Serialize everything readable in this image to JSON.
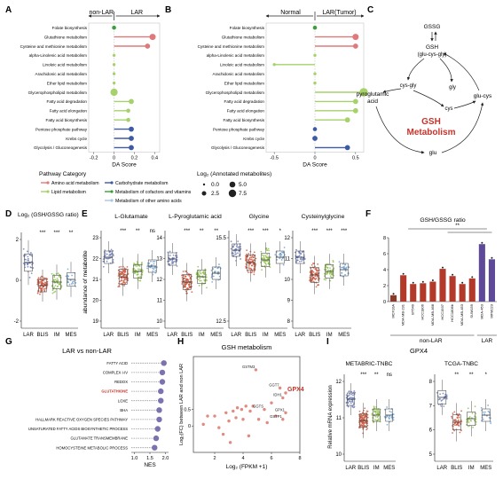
{
  "panels": {
    "A": "A",
    "B": "B",
    "C": "C",
    "D": "D",
    "E": "E",
    "F": "F",
    "G": "G",
    "H": "H",
    "I": "I"
  },
  "chart_data": [
    {
      "id": "A",
      "type": "lollipop",
      "left_label": "non-LAR",
      "right_label": "LAR",
      "xlabel": "DA Score",
      "ticks": [
        -0.2,
        0.0,
        0.2,
        0.4
      ],
      "xlim": [
        -0.25,
        0.45
      ],
      "pathways": [
        "Folate biosynthesis",
        "Glutathione metabolism",
        "Cysteine and methionine metabolism",
        "alpha-Linolenic acid metabolism",
        "Linoleic acid metabolism",
        "Arachidonic acid metabolism",
        "Ether lipid metabolism",
        "Glycerophospholipid metabolism",
        "Fatty acid degradation",
        "Fatty acid elongation",
        "Fatty acid biosynthesis",
        "Pentose phosphate pathway",
        "Krebs cycle",
        "Glycolysis / Gluconeogenesis"
      ],
      "values": [
        0.0,
        0.38,
        0.33,
        0.0,
        0.0,
        0.0,
        0.0,
        0.0,
        0.17,
        0.14,
        0.14,
        0.17,
        0.17,
        0.17
      ],
      "categories": [
        "cofactor",
        "amino",
        "amino",
        "lipid",
        "lipid",
        "lipid",
        "lipid",
        "lipid",
        "lipid",
        "lipid",
        "lipid",
        "carb",
        "carb",
        "carb"
      ],
      "sizes": [
        2,
        4,
        3,
        1,
        1,
        1,
        1,
        5,
        3,
        2,
        2,
        3,
        3,
        3
      ]
    },
    {
      "id": "B",
      "type": "lollipop",
      "left_label": "Normal",
      "right_label": "LAR(Tumor)",
      "xlabel": "DA Score",
      "ticks": [
        -0.5,
        0.0,
        0.5
      ],
      "xlim": [
        -0.6,
        0.6
      ],
      "pathways": [
        "Folate biosynthesis",
        "Glutathione metabolism",
        "Cysteine and methionine metabolism",
        "alpha-Linolenic acid metabolism",
        "Linoleic acid metabolism",
        "Arachidonic acid metabolism",
        "Ether lipid metabolism",
        "Glycerophospholipid metabolism",
        "Fatty acid degradation",
        "Fatty acid elongation",
        "Fatty acid biosynthesis",
        "Pentose phosphate pathway",
        "Krebs cycle",
        "Glycolysis / Gluconeogenesis"
      ],
      "values": [
        0.0,
        0.5,
        0.5,
        0.0,
        -0.5,
        0.0,
        0.0,
        0.6,
        0.5,
        0.5,
        0.4,
        0.0,
        0.0,
        0.4
      ],
      "categories": [
        "cofactor",
        "amino",
        "amino",
        "lipid",
        "lipid",
        "lipid",
        "lipid",
        "lipid",
        "lipid",
        "lipid",
        "lipid",
        "carb",
        "carb",
        "carb"
      ],
      "sizes": [
        2,
        4,
        3,
        1,
        1,
        1,
        1,
        6,
        3,
        3,
        3,
        2,
        3,
        3
      ]
    }
  ],
  "legend_ab": {
    "pathway_title": "Pathway Category",
    "items": [
      {
        "key": "amino",
        "label": "Amino acid metabolism",
        "color": "#e07a7a"
      },
      {
        "key": "lipid",
        "label": "Lipid metabolism",
        "color": "#a6d16b"
      },
      {
        "key": "carb",
        "label": "Carbohydrate metabolism",
        "color": "#3e5aa6"
      },
      {
        "key": "cofactor",
        "label": "Metabolism of cofactors and vitamins",
        "color": "#3aa13a"
      },
      {
        "key": "other",
        "label": "Metabolism of other amino acids",
        "color": "#a8c8e8"
      }
    ],
    "size_title": "Log₂ (Annotated metabolites)",
    "size_items": [
      "0.0",
      "2.5",
      "5.0",
      "7.5"
    ]
  },
  "panelC": {
    "gssg": "GSSG",
    "gsh": "GSH",
    "gsh2": "(glu-cys-gly)",
    "cysgly": "cys-gly",
    "gly": "gly",
    "pyro": "pyroglutamic",
    "pyro2": "acid",
    "cys": "cys",
    "glucys": "glu-cys",
    "glu": "glu",
    "center1": "GSH",
    "center2": "Metabolism"
  },
  "panelD": {
    "ylabel": "Log₂ (GSH/GSSG ratio)",
    "yticks": [
      "2",
      "0",
      "-2"
    ],
    "groups": [
      "LAR",
      "BLIS",
      "IM",
      "MES"
    ],
    "sig": [
      "",
      "***",
      "***",
      "**"
    ]
  },
  "panelE": {
    "ylabel": "abundance of metabolite",
    "groups": [
      "LAR",
      "BLIS",
      "IM",
      "MES"
    ],
    "charts": [
      {
        "title": "L-Glutamate",
        "yticks": [
          "23",
          "22",
          "21",
          "20",
          "19"
        ],
        "sig": [
          "",
          "***",
          "**",
          "ns"
        ]
      },
      {
        "title": "L-Pyroglutamic acid",
        "yticks": [
          "14",
          "13",
          "12",
          "11",
          "10"
        ],
        "sig": [
          "",
          "***",
          "**",
          "**"
        ]
      },
      {
        "title": "Glycine",
        "yticks": [
          "15.5",
          "12.5"
        ],
        "sig": [
          "",
          "***",
          "***",
          "*"
        ]
      },
      {
        "title": "Cysteinylglycine",
        "yticks": [
          "12",
          "11",
          "10",
          "9",
          "8"
        ],
        "sig": [
          "",
          "***",
          "***",
          "***"
        ]
      }
    ]
  },
  "panelF": {
    "title": "GSH/GSSG ratio",
    "sig": "**",
    "yticks": [
      "8",
      "6",
      "4",
      "2",
      "0"
    ],
    "labels": [
      "MCF10A",
      "MDA-MB-231",
      "BT549",
      "HCC1806",
      "MDA-MB-468",
      "HCC1937",
      "HCC1806b",
      "MDA-MB-453",
      "SUM159",
      "MDA-453",
      "MFM223"
    ],
    "values": [
      0.8,
      3.3,
      2.2,
      2.3,
      2.5,
      4.1,
      3.2,
      2.2,
      2.9,
      7.2,
      5.3
    ],
    "colors": [
      "#8b3a2a",
      "#b33a2a",
      "#b33a2a",
      "#b33a2a",
      "#b33a2a",
      "#b33a2a",
      "#b33a2a",
      "#b33a2a",
      "#b33a2a",
      "#5f4a9a",
      "#5f4a9a"
    ],
    "group_nonlar": "non-LAR",
    "group_lar": "LAR"
  },
  "panelG": {
    "title": "LAR vs non-LAR",
    "xlabel": "NES",
    "xticks": [
      "1.0",
      "1.5",
      "2.0"
    ],
    "items": [
      "FATTY ACID",
      "COMPLEX I-IV",
      "REDOX",
      "GLUTATHIONE",
      "LOXE",
      "BHA",
      "HALLMARK REACTIVE OXYGEN SPECIES PATHWAY",
      "UNSATURATED FATTY ACIDS BIOSYNTHETIC PROCESS",
      "GLUTAMATE TRANSMEMBRANE",
      "HOMOCYSTEINE METABOLIC PROCESS"
    ],
    "nes": [
      1.95,
      1.9,
      1.9,
      1.85,
      1.85,
      1.8,
      1.8,
      1.75,
      1.7,
      1.65
    ],
    "highlight": 3
  },
  "panelH": {
    "title": "GSH metabolism",
    "xlabel": "Log₂ (FPKM +1)",
    "ylabel": "Log₂(FC) between LAR and non LAR",
    "xticks": [
      "2",
      "4",
      "6",
      "8"
    ],
    "yticks": [
      "0.5",
      "0"
    ],
    "labels": [
      {
        "text": "GSTM3",
        "x": 4.9,
        "y": 1.7
      },
      {
        "text": "GGT7",
        "x": 6.6,
        "y": 1.15
      },
      {
        "text": "GPX4",
        "x": 7.0,
        "y": 1.0
      },
      {
        "text": "IDH1",
        "x": 6.8,
        "y": 0.85
      },
      {
        "text": "GGTS",
        "x": 5.5,
        "y": 0.5
      },
      {
        "text": "GPX1",
        "x": 7.0,
        "y": 0.4
      },
      {
        "text": "GSTP1",
        "x": 6.8,
        "y": 0.2
      }
    ],
    "points": [
      [
        1.2,
        0.05
      ],
      [
        1.5,
        0.3
      ],
      [
        2.0,
        0.3
      ],
      [
        2.3,
        -0.05
      ],
      [
        2.6,
        -0.25
      ],
      [
        2.8,
        0.4
      ],
      [
        3.0,
        0.15
      ],
      [
        3.3,
        0.45
      ],
      [
        3.5,
        0.25
      ],
      [
        3.6,
        0.55
      ],
      [
        3.9,
        0.5
      ],
      [
        4.0,
        0.2
      ],
      [
        4.2,
        0.6
      ],
      [
        4.5,
        0.45
      ],
      [
        4.7,
        0.6
      ],
      [
        4.9,
        1.7
      ],
      [
        5.1,
        0.2
      ],
      [
        5.5,
        0.5
      ],
      [
        5.7,
        0.1
      ],
      [
        6.0,
        0.7
      ],
      [
        6.3,
        0.3
      ],
      [
        6.6,
        1.15
      ],
      [
        6.8,
        0.85
      ],
      [
        7.0,
        0.4
      ],
      [
        7.0,
        1.0
      ],
      [
        6.8,
        0.2
      ],
      [
        3.1,
        -0.5
      ],
      [
        4.4,
        -0.3
      ]
    ]
  },
  "panelI": {
    "title": "GPX4",
    "ylabel": "Relative mRNA expression",
    "left": {
      "title": "METABRIC-TNBC",
      "yticks": [
        "12",
        "11",
        "10"
      ],
      "groups": [
        "LAR",
        "BLIS",
        "IM",
        "MES"
      ],
      "sig": [
        "",
        "***",
        "**",
        "ns"
      ]
    },
    "right": {
      "title": "TCGA-TNBC",
      "yticks": [
        "8",
        "7",
        "6",
        "5"
      ],
      "groups": [
        "LAR",
        "BLIS",
        "IM",
        "MES"
      ],
      "sig": [
        "",
        "**",
        "**",
        "*"
      ]
    }
  },
  "colors": {
    "amino": "#e07a7a",
    "lipid": "#a6d16b",
    "carb": "#3e5aa6",
    "cofactor": "#3aa13a",
    "other": "#a8c8e8",
    "lar": "#6a7ab8",
    "blis": "#c8553d",
    "im": "#8fbf4a",
    "mes": "#6a9fd0"
  }
}
